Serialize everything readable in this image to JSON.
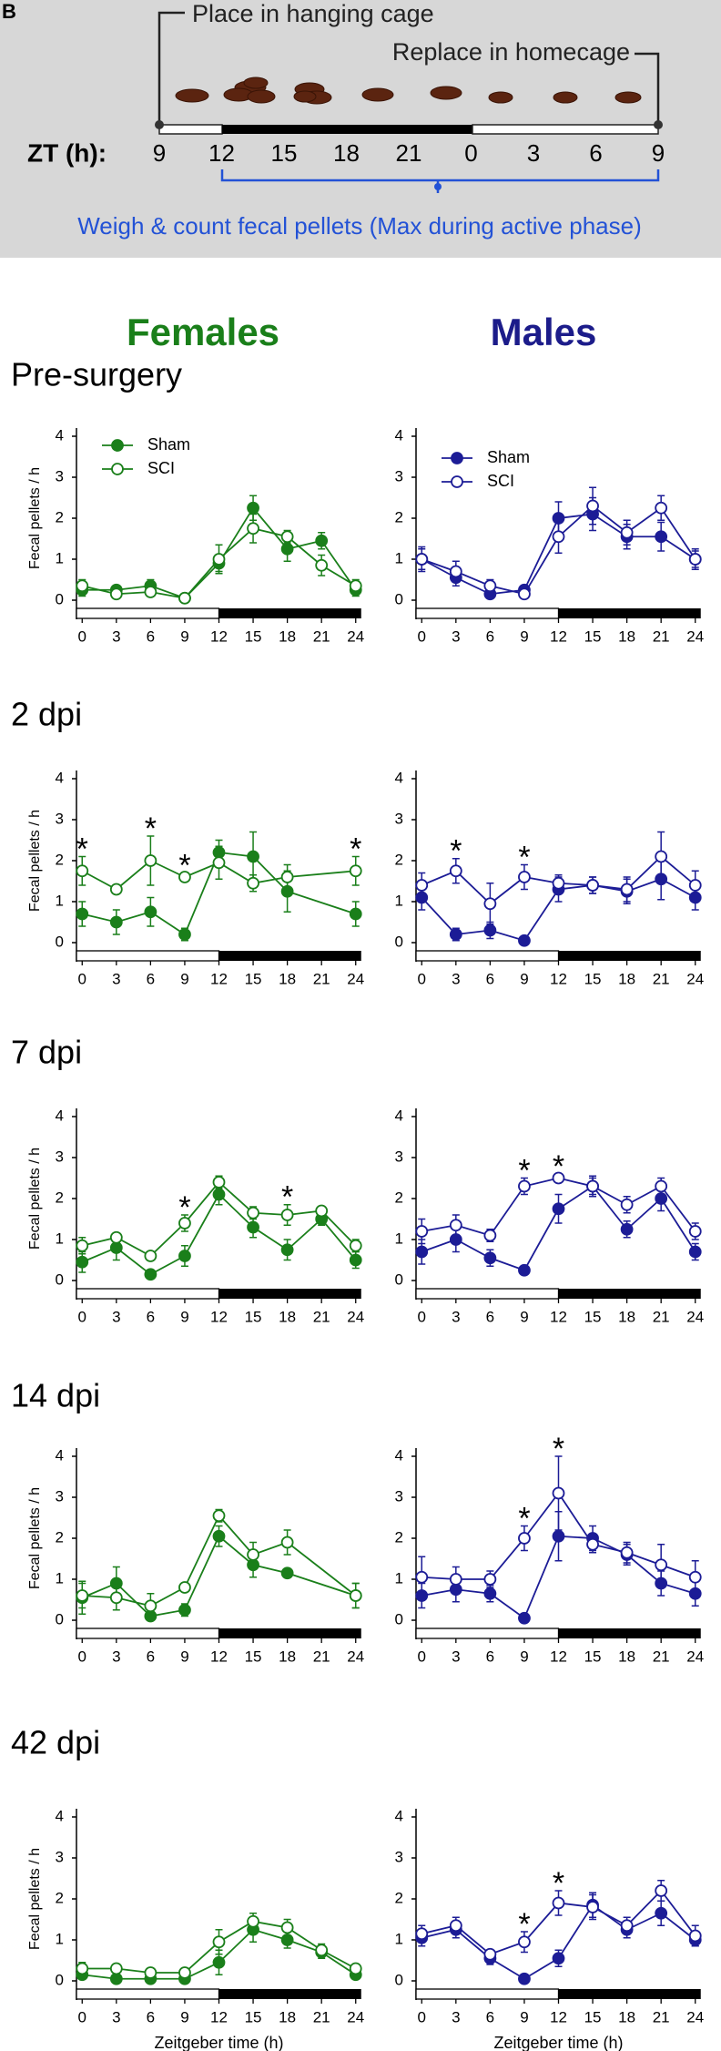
{
  "panel_label": "B",
  "schematic": {
    "place": "Place in hanging cage",
    "replace": "Replace in homecage",
    "zt_label": "ZT (h):",
    "zt_ticks": [
      "9",
      "12",
      "15",
      "18",
      "21",
      "0",
      "3",
      "6",
      "9"
    ],
    "note": "Weigh & count fecal pellets (Max during active phase)"
  },
  "column_titles": [
    "Females",
    "Males"
  ],
  "row_titles": [
    "Pre-surgery",
    "2 dpi",
    "7 dpi",
    "14 dpi",
    "42 dpi"
  ],
  "chart_data": [
    {
      "type": "line",
      "ylabel": "Fecal pellets / h",
      "legend": "upper left",
      "x": [
        0,
        3,
        6,
        9,
        12,
        15,
        18,
        21,
        24
      ],
      "xlim": [
        -0.5,
        24.5
      ],
      "xticks": [
        0,
        3,
        6,
        9,
        12,
        15,
        18,
        21,
        24
      ],
      "ylim": [
        -0.2,
        4.2
      ],
      "yticks": [
        0,
        1,
        2,
        3,
        4
      ],
      "dark_phase": [
        12,
        24
      ],
      "series": [
        {
          "name": "Sham",
          "color": "#1a7f1a",
          "filled": true,
          "values": [
            0.25,
            0.25,
            0.35,
            0.05,
            0.9,
            2.25,
            1.25,
            1.45,
            0.25
          ],
          "errors": [
            0.15,
            0.1,
            0.15,
            0.05,
            0.2,
            0.3,
            0.3,
            0.2,
            0.15
          ]
        },
        {
          "name": "SCI",
          "color": "#1a7f1a",
          "filled": false,
          "values": [
            0.35,
            0.15,
            0.2,
            0.05,
            1.0,
            1.75,
            1.55,
            0.85,
            0.35
          ],
          "errors": [
            0.15,
            0.1,
            0.1,
            0.05,
            0.35,
            0.35,
            0.15,
            0.25,
            0.15
          ]
        }
      ]
    },
    {
      "type": "line",
      "legend": "upper left",
      "x": [
        0,
        3,
        6,
        9,
        12,
        15,
        18,
        21,
        24
      ],
      "xlim": [
        -0.5,
        24.5
      ],
      "xticks": [
        0,
        3,
        6,
        9,
        12,
        15,
        18,
        21,
        24
      ],
      "ylim": [
        -0.2,
        4.2
      ],
      "yticks": [
        0,
        1,
        2,
        3,
        4
      ],
      "dark_phase": [
        12,
        24
      ],
      "series": [
        {
          "name": "Sham",
          "color": "#1c1c96",
          "filled": true,
          "values": [
            1.0,
            0.55,
            0.15,
            0.25,
            2.0,
            2.1,
            1.55,
            1.55,
            1.0
          ],
          "errors": [
            0.25,
            0.2,
            0.1,
            0.1,
            0.4,
            0.4,
            0.3,
            0.35,
            0.2
          ]
        },
        {
          "name": "SCI",
          "color": "#1c1c96",
          "filled": false,
          "values": [
            1.0,
            0.7,
            0.35,
            0.15,
            1.55,
            2.3,
            1.65,
            2.25,
            1.0
          ],
          "errors": [
            0.3,
            0.25,
            0.15,
            0.1,
            0.4,
            0.45,
            0.3,
            0.3,
            0.25
          ]
        }
      ]
    },
    {
      "type": "line",
      "ylabel": "Fecal pellets / h",
      "x": [
        0,
        3,
        6,
        9,
        12,
        15,
        18,
        24
      ],
      "xlim": [
        -0.5,
        24.5
      ],
      "xticks": [
        0,
        3,
        6,
        9,
        12,
        15,
        18,
        21,
        24
      ],
      "ylim": [
        -0.2,
        4.2
      ],
      "yticks": [
        0,
        1,
        2,
        3,
        4
      ],
      "dark_phase": [
        12,
        24
      ],
      "series": [
        {
          "color": "#1a7f1a",
          "filled": true,
          "values": [
            0.7,
            0.5,
            0.75,
            0.2,
            2.2,
            2.1,
            1.25,
            0.7
          ],
          "errors": [
            0.3,
            0.3,
            0.35,
            0.15,
            0.3,
            0.6,
            0.5,
            0.3
          ]
        },
        {
          "color": "#1a7f1a",
          "filled": false,
          "values": [
            1.75,
            1.3,
            2.0,
            1.6,
            1.95,
            1.45,
            1.6,
            1.75
          ],
          "errors": [
            0.35,
            0.1,
            0.6,
            0.1,
            0.4,
            0.2,
            0.3,
            0.35
          ]
        }
      ],
      "annotations": [
        {
          "x": 0,
          "text": "*"
        },
        {
          "x": 6,
          "text": "*"
        },
        {
          "x": 9,
          "text": "*"
        },
        {
          "x": 24,
          "text": "*"
        }
      ]
    },
    {
      "type": "line",
      "x": [
        0,
        3,
        6,
        9,
        12,
        15,
        18,
        21,
        24
      ],
      "xlim": [
        -0.5,
        24.5
      ],
      "xticks": [
        0,
        3,
        6,
        9,
        12,
        15,
        18,
        21,
        24
      ],
      "ylim": [
        -0.2,
        4.2
      ],
      "yticks": [
        0,
        1,
        2,
        3,
        4
      ],
      "dark_phase": [
        12,
        24
      ],
      "series": [
        {
          "color": "#1c1c96",
          "filled": true,
          "values": [
            1.1,
            0.2,
            0.3,
            0.05,
            1.3,
            1.4,
            1.25,
            1.55,
            1.1
          ],
          "errors": [
            0.3,
            0.15,
            0.2,
            0.05,
            0.3,
            0.2,
            0.3,
            0.5,
            0.3
          ]
        },
        {
          "color": "#1c1c96",
          "filled": false,
          "values": [
            1.4,
            1.75,
            0.95,
            1.6,
            1.45,
            1.4,
            1.3,
            2.1,
            1.4
          ],
          "errors": [
            0.3,
            0.3,
            0.5,
            0.3,
            0.2,
            0.2,
            0.3,
            0.6,
            0.35
          ]
        }
      ],
      "annotations": [
        {
          "x": 3,
          "text": "*"
        },
        {
          "x": 9,
          "text": "*"
        }
      ]
    },
    {
      "type": "line",
      "ylabel": "Fecal pellets / h",
      "x": [
        0,
        3,
        6,
        9,
        12,
        15,
        18,
        21,
        24
      ],
      "xlim": [
        -0.5,
        24.5
      ],
      "xticks": [
        0,
        3,
        6,
        9,
        12,
        15,
        18,
        21,
        24
      ],
      "ylim": [
        -0.2,
        4.2
      ],
      "yticks": [
        0,
        1,
        2,
        3,
        4
      ],
      "dark_phase": [
        12,
        24
      ],
      "series": [
        {
          "color": "#1a7f1a",
          "filled": true,
          "values": [
            0.45,
            0.8,
            0.15,
            0.6,
            2.1,
            1.3,
            0.75,
            1.5,
            0.5
          ],
          "errors": [
            0.25,
            0.3,
            0.1,
            0.25,
            0.25,
            0.25,
            0.25,
            0.15,
            0.2
          ]
        },
        {
          "color": "#1a7f1a",
          "filled": false,
          "values": [
            0.85,
            1.05,
            0.6,
            1.4,
            2.4,
            1.65,
            1.6,
            1.7,
            0.85
          ],
          "errors": [
            0.2,
            0.1,
            0.1,
            0.2,
            0.15,
            0.15,
            0.25,
            0.1,
            0.15
          ]
        }
      ],
      "annotations": [
        {
          "x": 9,
          "text": "*"
        },
        {
          "x": 18,
          "text": "*"
        }
      ]
    },
    {
      "type": "line",
      "x": [
        0,
        3,
        6,
        9,
        12,
        15,
        18,
        21,
        24
      ],
      "xlim": [
        -0.5,
        24.5
      ],
      "xticks": [
        0,
        3,
        6,
        9,
        12,
        15,
        18,
        21,
        24
      ],
      "ylim": [
        -0.2,
        4.2
      ],
      "yticks": [
        0,
        1,
        2,
        3,
        4
      ],
      "dark_phase": [
        12,
        24
      ],
      "series": [
        {
          "color": "#1c1c96",
          "filled": true,
          "values": [
            0.7,
            1.0,
            0.55,
            0.25,
            1.75,
            2.3,
            1.25,
            2.0,
            0.7
          ],
          "errors": [
            0.3,
            0.3,
            0.2,
            0.05,
            0.35,
            0.25,
            0.2,
            0.3,
            0.2
          ]
        },
        {
          "color": "#1c1c96",
          "filled": false,
          "values": [
            1.2,
            1.35,
            1.1,
            2.3,
            2.5,
            2.3,
            1.85,
            2.3,
            1.2
          ],
          "errors": [
            0.3,
            0.25,
            0.15,
            0.2,
            0.1,
            0.2,
            0.2,
            0.2,
            0.2
          ]
        }
      ],
      "annotations": [
        {
          "x": 9,
          "text": "*"
        },
        {
          "x": 12,
          "text": "*"
        }
      ]
    },
    {
      "type": "line",
      "ylabel": "Fecal pellets / h",
      "x": [
        0,
        3,
        6,
        9,
        12,
        15,
        18,
        24
      ],
      "xlim": [
        -0.5,
        24.5
      ],
      "xticks": [
        0,
        3,
        6,
        9,
        12,
        15,
        18,
        21,
        24
      ],
      "ylim": [
        -0.2,
        4.2
      ],
      "yticks": [
        0,
        1,
        2,
        3,
        4
      ],
      "dark_phase": [
        12,
        24
      ],
      "series": [
        {
          "color": "#1a7f1a",
          "filled": true,
          "values": [
            0.55,
            0.9,
            0.1,
            0.25,
            2.05,
            1.35,
            1.15,
            0.6
          ],
          "errors": [
            0.4,
            0.4,
            0.1,
            0.15,
            0.25,
            0.3,
            0.1,
            0.3
          ]
        },
        {
          "color": "#1a7f1a",
          "filled": false,
          "values": [
            0.6,
            0.55,
            0.35,
            0.8,
            2.55,
            1.6,
            1.9,
            0.6
          ],
          "errors": [
            0.3,
            0.3,
            0.3,
            0.05,
            0.15,
            0.3,
            0.3,
            0.3
          ]
        }
      ]
    },
    {
      "type": "line",
      "x": [
        0,
        3,
        6,
        9,
        12,
        15,
        18,
        21,
        24
      ],
      "xlim": [
        -0.5,
        24.5
      ],
      "xticks": [
        0,
        3,
        6,
        9,
        12,
        15,
        18,
        21,
        24
      ],
      "ylim": [
        -0.2,
        4.2
      ],
      "yticks": [
        0,
        1,
        2,
        3,
        4
      ],
      "dark_phase": [
        12,
        24
      ],
      "series": [
        {
          "color": "#1c1c96",
          "filled": true,
          "values": [
            0.6,
            0.75,
            0.65,
            0.05,
            2.05,
            2.0,
            1.6,
            0.9,
            0.65
          ],
          "errors": [
            0.3,
            0.3,
            0.2,
            0.05,
            0.6,
            0.3,
            0.25,
            0.3,
            0.3
          ]
        },
        {
          "color": "#1c1c96",
          "filled": false,
          "values": [
            1.05,
            1.0,
            1.0,
            2.0,
            3.1,
            1.85,
            1.65,
            1.35,
            1.05
          ],
          "errors": [
            0.5,
            0.3,
            0.2,
            0.3,
            0.9,
            0.2,
            0.25,
            0.5,
            0.4
          ]
        }
      ],
      "annotations": [
        {
          "x": 9,
          "text": "*"
        },
        {
          "x": 12,
          "text": "*"
        }
      ]
    },
    {
      "type": "line",
      "ylabel": "Fecal pellets / h",
      "xlabel": "Zeitgeber time (h)",
      "x": [
        0,
        3,
        6,
        9,
        12,
        15,
        18,
        21,
        24
      ],
      "xlim": [
        -0.5,
        24.5
      ],
      "xticks": [
        0,
        3,
        6,
        9,
        12,
        15,
        18,
        21,
        24
      ],
      "ylim": [
        -0.2,
        4.2
      ],
      "yticks": [
        0,
        1,
        2,
        3,
        4
      ],
      "dark_phase": [
        12,
        24
      ],
      "series": [
        {
          "color": "#1a7f1a",
          "filled": true,
          "values": [
            0.15,
            0.05,
            0.05,
            0.05,
            0.45,
            1.25,
            1.0,
            0.7,
            0.15
          ],
          "errors": [
            0.1,
            0.05,
            0.05,
            0.05,
            0.3,
            0.3,
            0.2,
            0.15,
            0.1
          ]
        },
        {
          "color": "#1a7f1a",
          "filled": false,
          "values": [
            0.3,
            0.3,
            0.2,
            0.2,
            0.95,
            1.45,
            1.3,
            0.75,
            0.3
          ],
          "errors": [
            0.15,
            0.1,
            0.1,
            0.1,
            0.3,
            0.2,
            0.2,
            0.15,
            0.1
          ]
        }
      ]
    },
    {
      "type": "line",
      "xlabel": "Zeitgeber time (h)",
      "x": [
        0,
        3,
        6,
        9,
        12,
        15,
        18,
        21,
        24
      ],
      "xlim": [
        -0.5,
        24.5
      ],
      "xticks": [
        0,
        3,
        6,
        9,
        12,
        15,
        18,
        21,
        24
      ],
      "ylim": [
        -0.2,
        4.2
      ],
      "yticks": [
        0,
        1,
        2,
        3,
        4
      ],
      "dark_phase": [
        12,
        24
      ],
      "series": [
        {
          "color": "#1c1c96",
          "filled": true,
          "values": [
            1.05,
            1.25,
            0.55,
            0.05,
            0.55,
            1.85,
            1.25,
            1.65,
            1.0
          ],
          "errors": [
            0.2,
            0.2,
            0.15,
            0.05,
            0.2,
            0.3,
            0.2,
            0.3,
            0.15
          ]
        },
        {
          "color": "#1c1c96",
          "filled": false,
          "values": [
            1.15,
            1.35,
            0.65,
            0.95,
            1.9,
            1.8,
            1.35,
            2.2,
            1.1
          ],
          "errors": [
            0.2,
            0.2,
            0.1,
            0.25,
            0.3,
            0.3,
            0.2,
            0.25,
            0.25
          ]
        }
      ],
      "annotations": [
        {
          "x": 9,
          "text": "*"
        },
        {
          "x": 12,
          "text": "*"
        }
      ]
    }
  ]
}
